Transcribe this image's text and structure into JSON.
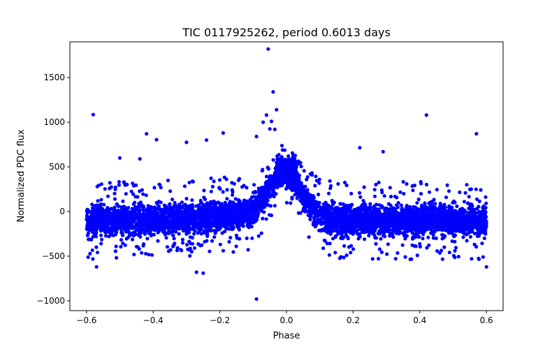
{
  "chart_data": {
    "type": "scatter",
    "title": "TIC 0117925262, period 0.6013 days",
    "xlabel": "Phase",
    "ylabel": "Normalized PDC flux",
    "xlim": [
      -0.65,
      0.65
    ],
    "ylim": [
      -1110,
      1900
    ],
    "xticks": [
      -0.6,
      -0.4,
      -0.2,
      0.0,
      0.2,
      0.4,
      0.6
    ],
    "xtick_labels": [
      "−0.6",
      "−0.4",
      "−0.2",
      "0.0",
      "0.2",
      "0.4",
      "0.6"
    ],
    "yticks": [
      -1000,
      -500,
      0,
      500,
      1000,
      1500
    ],
    "ytick_labels": [
      "−1000",
      "−500",
      "0",
      "500",
      "1000",
      "1500"
    ],
    "grid": false,
    "marker_color": "#0000ff",
    "series": [
      {
        "name": "PDC flux",
        "bulk_band": {
          "x_range": [
            -0.6,
            0.6
          ],
          "baseline_center": -100,
          "baseline_half_width": 300,
          "peak_phase": 0.0,
          "peak_center": 380,
          "peak_half_width": 210,
          "peak_width_phase": 0.05,
          "rise_slope_note": "gradual rise from -0.4 toward 0.0, sharper fall after 0.0"
        },
        "outliers": [
          {
            "x": -0.58,
            "y": 1085
          },
          {
            "x": -0.42,
            "y": 870
          },
          {
            "x": -0.39,
            "y": 805
          },
          {
            "x": -0.3,
            "y": 775
          },
          {
            "x": -0.24,
            "y": 800
          },
          {
            "x": -0.19,
            "y": 880
          },
          {
            "x": -0.5,
            "y": 600
          },
          {
            "x": -0.44,
            "y": 590
          },
          {
            "x": -0.09,
            "y": 840
          },
          {
            "x": -0.07,
            "y": 1000
          },
          {
            "x": -0.055,
            "y": 1820
          },
          {
            "x": -0.04,
            "y": 1340
          },
          {
            "x": -0.03,
            "y": 1140
          },
          {
            "x": -0.045,
            "y": 1010
          },
          {
            "x": -0.05,
            "y": 925
          },
          {
            "x": -0.06,
            "y": 1080
          },
          {
            "x": -0.035,
            "y": 920
          },
          {
            "x": 0.22,
            "y": 715
          },
          {
            "x": 0.29,
            "y": 670
          },
          {
            "x": 0.42,
            "y": 1080
          },
          {
            "x": 0.57,
            "y": 870
          },
          {
            "x": -0.09,
            "y": -980
          },
          {
            "x": -0.57,
            "y": -620
          },
          {
            "x": -0.27,
            "y": -680
          },
          {
            "x": -0.25,
            "y": -690
          },
          {
            "x": 0.6,
            "y": -620
          }
        ]
      }
    ]
  }
}
